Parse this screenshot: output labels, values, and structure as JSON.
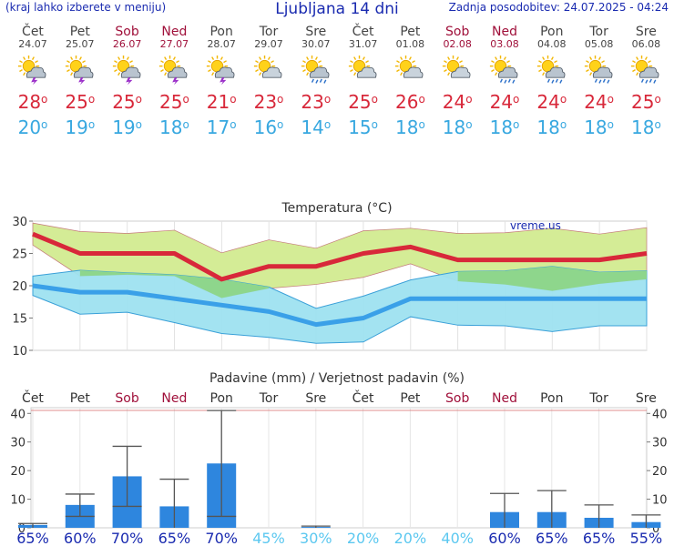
{
  "header": {
    "left_note": "(kraj lahko izberete v meniju)",
    "title": "Ljubljana 14 dni",
    "updated": "Zadnja posodobitev: 24.07.2025 - 04:24"
  },
  "days": [
    {
      "name": "Čet",
      "date": "24.07",
      "weekend": false,
      "icon": "sun-cloud-thunder-icon",
      "tmax": "28",
      "tmin": "20"
    },
    {
      "name": "Pet",
      "date": "25.07",
      "weekend": false,
      "icon": "sun-cloud-thunder-icon",
      "tmax": "25",
      "tmin": "19"
    },
    {
      "name": "Sob",
      "date": "26.07",
      "weekend": true,
      "icon": "sun-cloud-thunder-icon",
      "tmax": "25",
      "tmin": "19"
    },
    {
      "name": "Ned",
      "date": "27.07",
      "weekend": true,
      "icon": "sun-cloud-thunder-icon",
      "tmax": "25",
      "tmin": "18"
    },
    {
      "name": "Pon",
      "date": "28.07",
      "weekend": false,
      "icon": "sun-cloud-thunder-icon",
      "tmax": "21",
      "tmin": "17"
    },
    {
      "name": "Tor",
      "date": "29.07",
      "weekend": false,
      "icon": "sun-cloud-icon",
      "tmax": "23",
      "tmin": "16"
    },
    {
      "name": "Sre",
      "date": "30.07",
      "weekend": false,
      "icon": "sun-cloud-rain-icon",
      "tmax": "23",
      "tmin": "14"
    },
    {
      "name": "Čet",
      "date": "31.07",
      "weekend": false,
      "icon": "sun-cloud-icon",
      "tmax": "25",
      "tmin": "15"
    },
    {
      "name": "Pet",
      "date": "01.08",
      "weekend": false,
      "icon": "sun-cloud-icon",
      "tmax": "26",
      "tmin": "18"
    },
    {
      "name": "Sob",
      "date": "02.08",
      "weekend": true,
      "icon": "sun-cloud-icon",
      "tmax": "24",
      "tmin": "18"
    },
    {
      "name": "Ned",
      "date": "03.08",
      "weekend": true,
      "icon": "sun-cloud-rain-icon",
      "tmax": "24",
      "tmin": "18"
    },
    {
      "name": "Pon",
      "date": "04.08",
      "weekend": false,
      "icon": "sun-cloud-rain-icon",
      "tmax": "24",
      "tmin": "18"
    },
    {
      "name": "Tor",
      "date": "05.08",
      "weekend": false,
      "icon": "sun-cloud-rain-icon",
      "tmax": "24",
      "tmin": "18"
    },
    {
      "name": "Sre",
      "date": "06.08",
      "weekend": false,
      "icon": "sun-cloud-rain-icon",
      "tmax": "25",
      "tmin": "18"
    }
  ],
  "degree_symbol": "o",
  "colors": {
    "tmax": "#d8283a",
    "tmin": "#38a8e0",
    "weekend": "#a0103a",
    "band_max": "#d4ec96",
    "band_min": "#9ee2f0",
    "band_overlap": "#8ed68c",
    "precip_bar": "#2e86de",
    "prob_high": "#1a2bb0",
    "prob_low": "#5cc8f0"
  },
  "chart_data": [
    {
      "type": "area",
      "title": "Temperatura (°C)",
      "watermark": "vreme.us",
      "ylim": [
        10,
        30
      ],
      "yticks": [
        10,
        15,
        20,
        25,
        30
      ],
      "x": [
        "24.07",
        "25.07",
        "26.07",
        "27.07",
        "28.07",
        "29.07",
        "30.07",
        "31.07",
        "01.08",
        "02.08",
        "03.08",
        "04.08",
        "05.08",
        "06.08"
      ],
      "series": [
        {
          "role": "tmax",
          "values": [
            28,
            25,
            25,
            25,
            21,
            23,
            23,
            25,
            26,
            24,
            24,
            24,
            24,
            25
          ]
        },
        {
          "role": "tmax_upper",
          "values": [
            29.7,
            28.4,
            28.1,
            28.6,
            25.1,
            27.1,
            25.8,
            28.5,
            28.9,
            28.1,
            28.2,
            28.9,
            28.0,
            29.0
          ]
        },
        {
          "role": "tmax_lower",
          "values": [
            26.3,
            21.5,
            21.7,
            21.5,
            18.1,
            19.6,
            20.2,
            21.3,
            23.4,
            20.7,
            20.2,
            19.2,
            20.3,
            21.0
          ]
        },
        {
          "role": "tmin",
          "values": [
            20,
            19,
            19,
            18,
            17,
            16,
            14,
            15,
            18,
            18,
            18,
            18,
            18,
            18
          ]
        },
        {
          "role": "tmin_upper",
          "values": [
            21.5,
            22.4,
            22.0,
            21.7,
            21.0,
            19.8,
            16.5,
            18.4,
            20.9,
            22.2,
            22.3,
            23.0,
            22.1,
            22.3
          ]
        },
        {
          "role": "tmin_lower",
          "values": [
            18.5,
            15.6,
            15.9,
            14.3,
            12.6,
            12.0,
            11.1,
            11.3,
            15.2,
            13.9,
            13.8,
            12.9,
            13.8,
            13.8
          ]
        }
      ]
    },
    {
      "type": "bar",
      "title": "Padavine (mm) / Verjetnost padavin (%)",
      "ylim": [
        0,
        42
      ],
      "yticks": [
        0,
        10,
        20,
        30,
        40
      ],
      "categories": [
        "Čet",
        "Pet",
        "Sob",
        "Ned",
        "Pon",
        "Tor",
        "Sre",
        "Čet",
        "Pet",
        "Sob",
        "Ned",
        "Pon",
        "Tor",
        "Sre"
      ],
      "weekend": [
        false,
        false,
        true,
        true,
        false,
        false,
        false,
        false,
        false,
        true,
        true,
        false,
        false,
        false
      ],
      "values": [
        1.0,
        8.0,
        18.0,
        7.5,
        22.5,
        0,
        0.3,
        0,
        0,
        0,
        5.5,
        5.5,
        3.5,
        2.0
      ],
      "err_high": [
        1.5,
        11.8,
        28.5,
        17.0,
        41.0,
        0,
        0.6,
        0,
        0,
        0,
        12.0,
        13.0,
        8.0,
        4.5
      ],
      "err_low": [
        0,
        4.0,
        7.5,
        0,
        4.0,
        0,
        0,
        0,
        0,
        0,
        0,
        0,
        0,
        0
      ],
      "probability": [
        "65%",
        "60%",
        "70%",
        "65%",
        "70%",
        "45%",
        "30%",
        "20%",
        "20%",
        "40%",
        "60%",
        "65%",
        "65%",
        "55%"
      ]
    }
  ]
}
